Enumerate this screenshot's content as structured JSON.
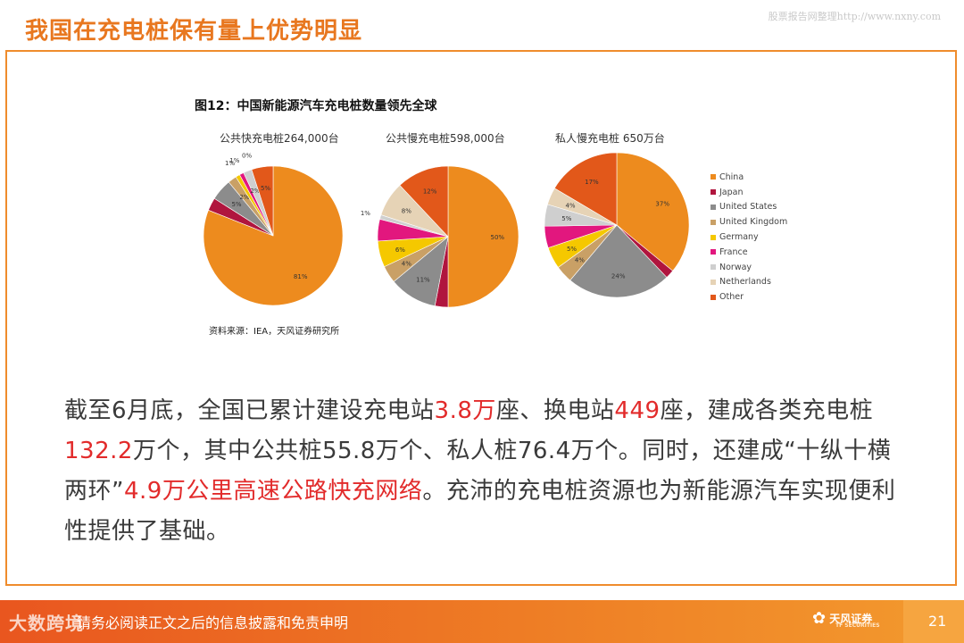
{
  "slide": {
    "title": "我国在充电桩保有量上优势明显",
    "watermark": "股票报告网整理http://www.nxny.com"
  },
  "figure": {
    "title": "图12：中国新能源汽车充电桩数量领先全球",
    "source": "资料来源：IEA，天风证券研究所"
  },
  "body": {
    "p1": "截至6月底，全国已累计建设充电站",
    "h1": "3.8万",
    "p2": "座、换电站",
    "h2": "449",
    "p3": "座，建成各类充电桩",
    "h3": "132.2",
    "p4": "万个，其中公共桩55.8万个、私人桩76.4万个。同时，还建成“十纵十横两环”",
    "h4": "4.9万公里高速公路快充网络",
    "p5": "。充沛的充电桩资源也为新能源汽车实现便利性提供了基础。"
  },
  "footer": {
    "notice": "请务必阅读正文之后的信息披露和免责申明",
    "brand": "大数跨境",
    "logo_text": "天风证券",
    "logo_sub": "TF SECURITIES",
    "page": "21"
  },
  "colors": {
    "China": "#ed8b1e",
    "Japan": "#b0153e",
    "United States": "#8c8c8c",
    "United Kingdom": "#c9a066",
    "Germany": "#f5c800",
    "France": "#e2177e",
    "Norway": "#cfcfcf",
    "Netherlands": "#e6d3b6",
    "Other": "#e2581a"
  },
  "chart_data": [
    {
      "type": "pie",
      "title": "公共快充电桩264,000台",
      "categories": [
        "China",
        "Japan",
        "United States",
        "United Kingdom",
        "Germany",
        "France",
        "Norway",
        "Netherlands",
        "Other"
      ],
      "values": [
        81,
        3,
        5,
        2,
        1,
        1,
        2,
        0,
        5
      ],
      "labels": [
        "81%",
        "",
        "5%",
        "2%",
        "1%",
        "1%",
        "2%",
        "0%",
        "5%"
      ]
    },
    {
      "type": "pie",
      "title": "公共慢充电桩598,000台",
      "categories": [
        "China",
        "Japan",
        "United States",
        "United Kingdom",
        "Germany",
        "France",
        "Norway",
        "Netherlands",
        "Other"
      ],
      "values": [
        50,
        3,
        11,
        4,
        6,
        5,
        1,
        8,
        12
      ],
      "labels": [
        "50%",
        "",
        "11%",
        "4%",
        "6%",
        "",
        "1%",
        "8%",
        "12%"
      ]
    },
    {
      "type": "pie",
      "title": "私人慢充电桩 650万台",
      "categories": [
        "China",
        "Japan",
        "United States",
        "United Kingdom",
        "Germany",
        "France",
        "Norway",
        "Netherlands",
        "Other"
      ],
      "values": [
        37,
        2,
        24,
        4,
        5,
        5,
        5,
        4,
        17
      ],
      "labels": [
        "37%",
        "",
        "24%",
        "4%",
        "5%",
        "",
        "5%",
        "4%",
        "17%"
      ]
    }
  ],
  "legend": [
    "China",
    "Japan",
    "United States",
    "United Kingdom",
    "Germany",
    "France",
    "Norway",
    "Netherlands",
    "Other"
  ]
}
